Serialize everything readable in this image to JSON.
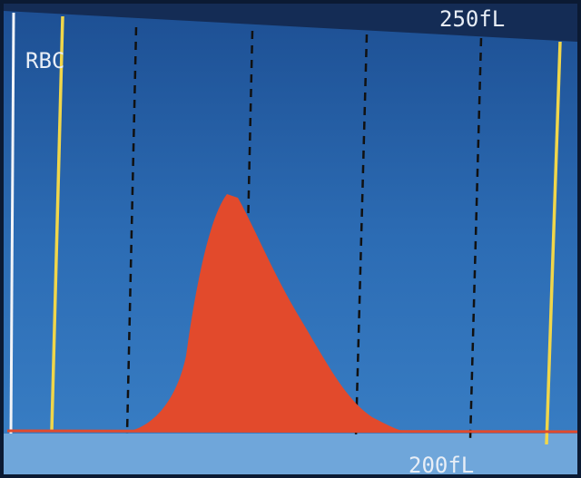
{
  "screen": {
    "label": "RBC",
    "top_marker": "250fL",
    "bottom_marker": "200fL"
  }
}
